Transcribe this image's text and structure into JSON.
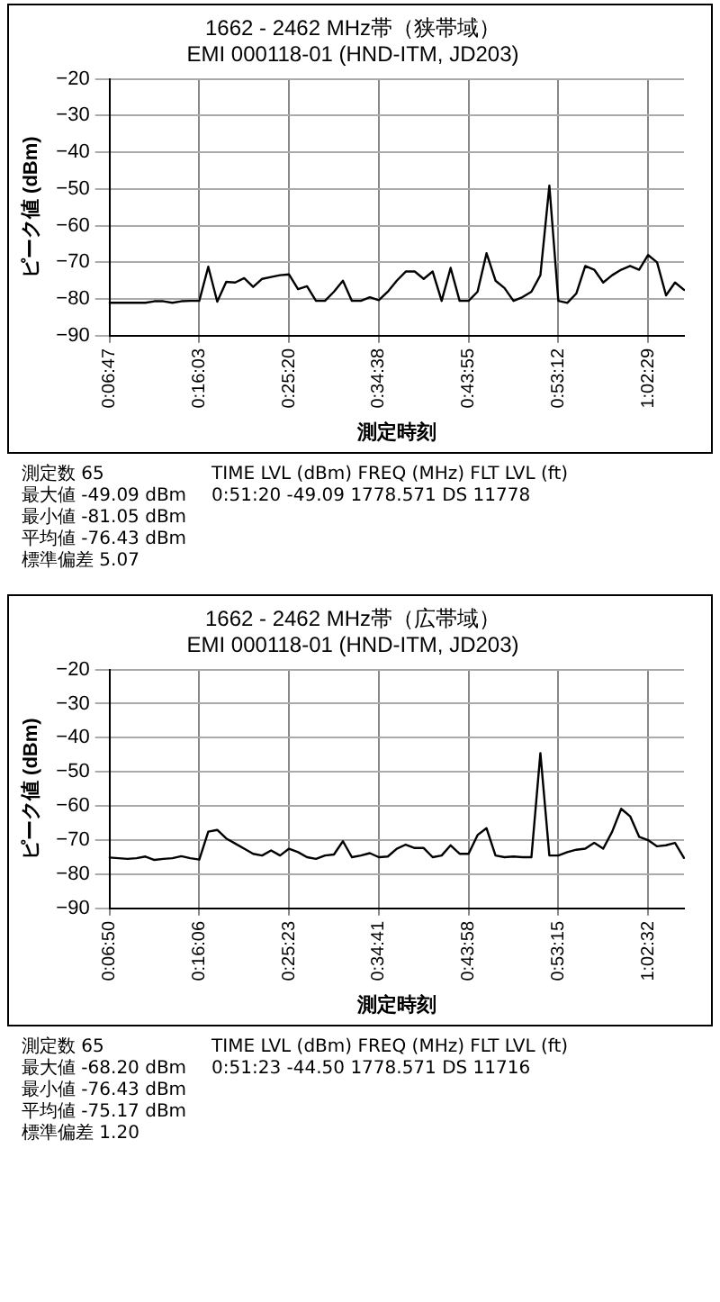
{
  "chart_data": [
    {
      "type": "line",
      "title": "1662 - 2462 MHz帯（狭帯域）",
      "subtitle": "EMI 000118-01 (HND-ITM, JD203)",
      "xlabel": "測定時刻",
      "ylabel": "ピーク値 (dBm)",
      "categories": [
        "0:06:47",
        null,
        null,
        null,
        null,
        null,
        null,
        null,
        null,
        null,
        "0:16:03",
        null,
        null,
        null,
        null,
        null,
        null,
        null,
        null,
        null,
        "0:25:20",
        null,
        null,
        null,
        null,
        null,
        null,
        null,
        null,
        null,
        "0:34:38",
        null,
        null,
        null,
        null,
        null,
        null,
        null,
        null,
        null,
        "0:43:55",
        null,
        null,
        null,
        null,
        null,
        null,
        null,
        null,
        null,
        "0:53:12",
        null,
        null,
        null,
        null,
        null,
        null,
        null,
        null,
        null,
        "1:02:29",
        null,
        null,
        null,
        null
      ],
      "series": [
        {
          "color": "#000000",
          "values": [
            -81,
            -81,
            -81,
            -81,
            -81,
            -80.6,
            -80.6,
            -81,
            -80.6,
            -80.5,
            -80.5,
            -71.2,
            -80.7,
            -75.3,
            -75.5,
            -74.3,
            -76.7,
            -74.5,
            -74,
            -73.5,
            -73.3,
            -77.3,
            -76.5,
            -80.5,
            -80.5,
            -78,
            -75,
            -80.5,
            -80.5,
            -79.5,
            -80.3,
            -78,
            -75,
            -72.5,
            -72.5,
            -74.5,
            -72.5,
            -80.5,
            -71.5,
            -80.5,
            -80.5,
            -78,
            -67.5,
            -75,
            -77,
            -80.5,
            -79.5,
            -78,
            -73.5,
            -49.09,
            -80.5,
            -81.05,
            -78.5,
            -71,
            -72,
            -75.5,
            -73.5,
            -72,
            -71,
            -72,
            -68,
            -70,
            -79,
            -75.5,
            -77.5
          ]
        }
      ],
      "ylim": [
        -90,
        -20
      ],
      "yticks": [
        -90,
        -80,
        -70,
        -60,
        -50,
        -40,
        -30,
        -20
      ],
      "grid": true,
      "legend": false,
      "annotations": [
        "測定数 65",
        "最大値 -49.09 dBm",
        "最小値 -81.05 dBm",
        "平均値 -76.43 dBm",
        "標準偏差 5.07",
        "TIME LVL (dBm) FREQ (MHz) FLT LVL (ft)",
        "0:51:20 -49.09 1778.571 DS 11778"
      ]
    },
    {
      "type": "line",
      "title": "1662 - 2462 MHz帯（広帯域）",
      "subtitle": "EMI 000118-01 (HND-ITM, JD203)",
      "xlabel": "測定時刻",
      "ylabel": "ピーク値 (dBm)",
      "categories": [
        "0:06:50",
        null,
        null,
        null,
        null,
        null,
        null,
        null,
        null,
        null,
        "0:16:06",
        null,
        null,
        null,
        null,
        null,
        null,
        null,
        null,
        null,
        "0:25:23",
        null,
        null,
        null,
        null,
        null,
        null,
        null,
        null,
        null,
        "0:34:41",
        null,
        null,
        null,
        null,
        null,
        null,
        null,
        null,
        null,
        "0:43:58",
        null,
        null,
        null,
        null,
        null,
        null,
        null,
        null,
        null,
        "0:53:15",
        null,
        null,
        null,
        null,
        null,
        null,
        null,
        null,
        null,
        "1:02:32",
        null,
        null,
        null,
        null
      ],
      "series": [
        {
          "color": "#000000",
          "values": [
            -75.1,
            -75.3,
            -75.5,
            -75.3,
            -74.8,
            -75.8,
            -75.5,
            -75.3,
            -74.7,
            -75.3,
            -75.7,
            -67.5,
            -67,
            -69.5,
            -71,
            -72.5,
            -74,
            -74.5,
            -73,
            -74.5,
            -72.5,
            -73.5,
            -75,
            -75.5,
            -74.5,
            -74.2,
            -70.3,
            -75,
            -74.5,
            -73.8,
            -75,
            -74.8,
            -72.5,
            -71.3,
            -72.3,
            -72.3,
            -75,
            -74.5,
            -71.5,
            -74,
            -74,
            -68.5,
            -66.5,
            -74.5,
            -75,
            -74.8,
            -75,
            -75,
            -44.5,
            -74.5,
            -74.5,
            -73.5,
            -72.8,
            -72.5,
            -70.8,
            -72.5,
            -67.5,
            -60.8,
            -63,
            -69,
            -70,
            -71.8,
            -71.5,
            -70.8,
            -75.2
          ]
        }
      ],
      "ylim": [
        -90,
        -20
      ],
      "yticks": [
        -90,
        -80,
        -70,
        -60,
        -50,
        -40,
        -30,
        -20
      ],
      "grid": true,
      "legend": false,
      "annotations": [
        "測定数 65",
        "最大値 -68.20 dBm",
        "最小値 -76.43 dBm",
        "平均値 -75.17 dBm",
        "標準偏差 1.20",
        "TIME LVL (dBm) FREQ (MHz) FLT LVL (ft)",
        "0:51:23 -44.50 1778.571 DS 11716"
      ]
    }
  ]
}
